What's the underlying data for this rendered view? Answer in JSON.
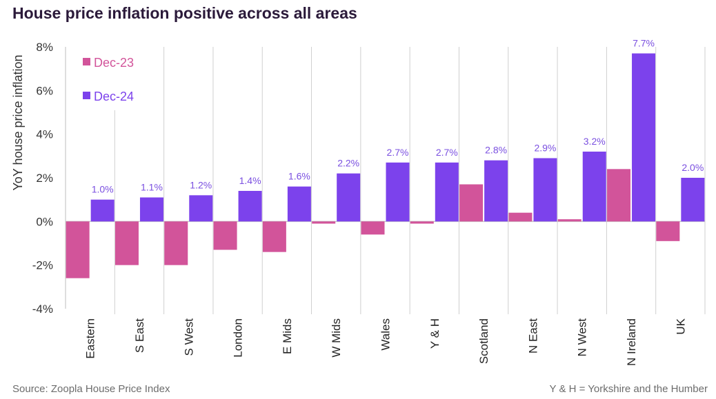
{
  "title": "House price inflation positive across all areas",
  "source": "Source: Zoopla House Price Index",
  "note": "Y & H = Yorkshire and the Humber",
  "colors": {
    "dec23": "#d2549a",
    "dec24": "#7c42ec",
    "label": "#7a4fe0"
  },
  "chart_data": {
    "type": "bar",
    "title": "House price inflation positive across all areas",
    "ylabel": "YoY house price inflation",
    "xlabel": "",
    "ylim": [
      -4,
      8
    ],
    "yticks": [
      -4,
      -2,
      0,
      2,
      4,
      6,
      8
    ],
    "ytick_labels": [
      "-4%",
      "-2%",
      "0%",
      "2%",
      "4%",
      "6%",
      "8%"
    ],
    "categories": [
      "Eastern",
      "S East",
      "S West",
      "London",
      "E Mids",
      "W Mids",
      "Wales",
      "Y & H",
      "Scotland",
      "N East",
      "N West",
      "N Ireland",
      "UK"
    ],
    "series": [
      {
        "name": "Dec-23",
        "values": [
          -2.6,
          -2.0,
          -2.0,
          -1.3,
          -1.4,
          -0.1,
          -0.6,
          -0.1,
          1.7,
          0.4,
          0.1,
          2.4,
          -0.9
        ]
      },
      {
        "name": "Dec-24",
        "values": [
          1.0,
          1.1,
          1.2,
          1.4,
          1.6,
          2.2,
          2.7,
          2.7,
          2.8,
          2.9,
          3.2,
          7.7,
          2.0
        ],
        "labels": [
          "1.0%",
          "1.1%",
          "1.2%",
          "1.4%",
          "1.6%",
          "2.2%",
          "2.7%",
          "2.7%",
          "2.8%",
          "2.9%",
          "3.2%",
          "7.7%",
          "2.0%"
        ]
      }
    ],
    "legend": "top-left",
    "grid": "vertical category separators"
  }
}
